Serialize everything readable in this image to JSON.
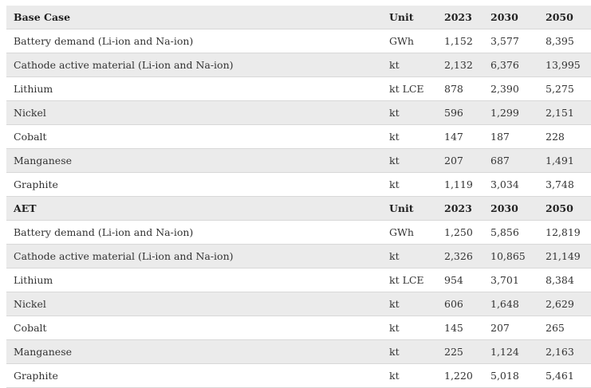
{
  "sections": [
    {
      "title": "Base Case",
      "headers": [
        "Unit",
        "2023",
        "2030",
        "2050"
      ],
      "rows": [
        {
          "label": "Battery demand (Li-ion and Na-ion)",
          "unit": "GWh",
          "values": [
            "1,152",
            "3,577",
            "8,395"
          ]
        },
        {
          "label": "Cathode active material (Li-ion and Na-ion)",
          "unit": "kt",
          "values": [
            "2,132",
            "6,376",
            "13,995"
          ]
        },
        {
          "label": "Lithium",
          "unit": "kt LCE",
          "values": [
            "878",
            "2,390",
            "5,275"
          ]
        },
        {
          "label": "Nickel",
          "unit": "kt",
          "values": [
            "596",
            "1,299",
            "2,151"
          ]
        },
        {
          "label": "Cobalt",
          "unit": "kt",
          "values": [
            "147",
            "187",
            "228"
          ]
        },
        {
          "label": "Manganese",
          "unit": "kt",
          "values": [
            "207",
            "687",
            "1,491"
          ]
        },
        {
          "label": "Graphite",
          "unit": "kt",
          "values": [
            "1,119",
            "3,034",
            "3,748"
          ]
        }
      ]
    },
    {
      "title": "AET",
      "headers": [
        "Unit",
        "2023",
        "2030",
        "2050"
      ],
      "rows": [
        {
          "label": "Battery demand (Li-ion and Na-ion)",
          "unit": "GWh",
          "values": [
            "1,250",
            "5,856",
            "12,819"
          ]
        },
        {
          "label": "Cathode active material (Li-ion and Na-ion)",
          "unit": "kt",
          "values": [
            "2,326",
            "10,865",
            "21,149"
          ]
        },
        {
          "label": "Lithium",
          "unit": "kt LCE",
          "values": [
            "954",
            "3,701",
            "8,384"
          ]
        },
        {
          "label": "Nickel",
          "unit": "kt",
          "values": [
            "606",
            "1,648",
            "2,629"
          ]
        },
        {
          "label": "Cobalt",
          "unit": "kt",
          "values": [
            "145",
            "207",
            "265"
          ]
        },
        {
          "label": "Manganese",
          "unit": "kt",
          "values": [
            "225",
            "1,124",
            "2,163"
          ]
        },
        {
          "label": "Graphite",
          "unit": "kt",
          "values": [
            "1,220",
            "5,018",
            "5,461"
          ]
        }
      ]
    }
  ]
}
